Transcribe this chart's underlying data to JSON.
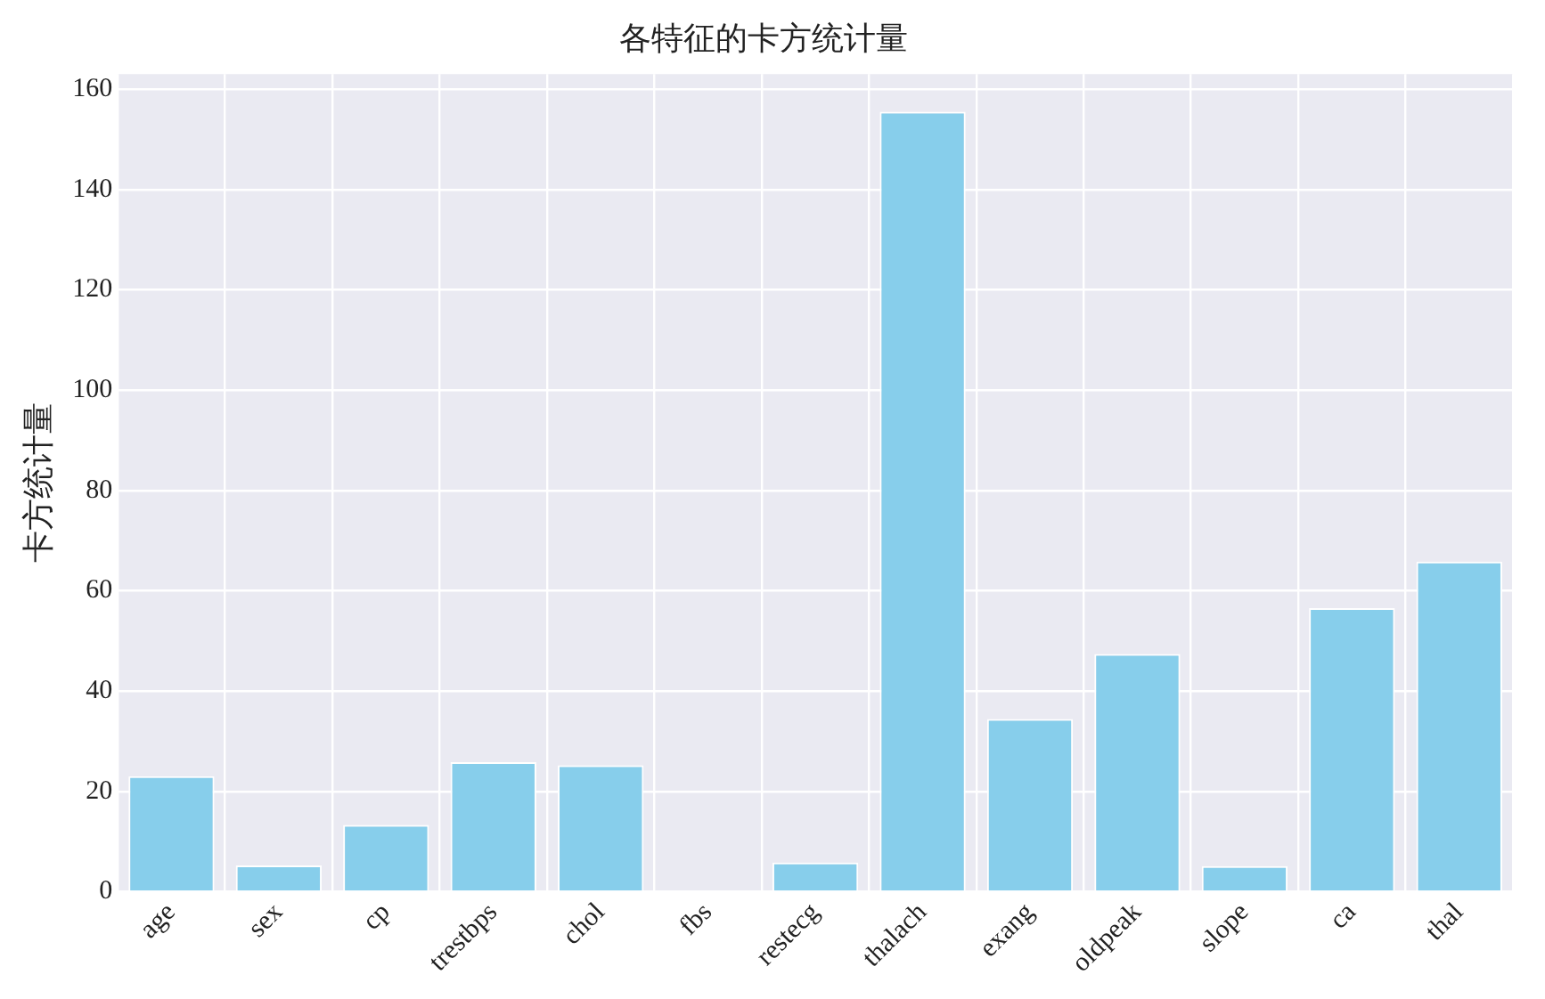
{
  "chart_data": {
    "type": "bar",
    "title": "各特征的卡方统计量",
    "ylabel": "卡方统计量",
    "categories": [
      "age",
      "sex",
      "cp",
      "trestbps",
      "chol",
      "fbs",
      "restecg",
      "thalach",
      "exang",
      "oldpeak",
      "slope",
      "ca",
      "thal"
    ],
    "values": [
      23.0,
      5.2,
      13.3,
      25.8,
      25.2,
      null,
      5.8,
      155.5,
      34.4,
      47.4,
      5.1,
      56.5,
      65.8
    ],
    "color": "#87ceeb",
    "ylim": [
      0,
      163
    ],
    "yticks": [
      0,
      20,
      40,
      60,
      80,
      100,
      120,
      140,
      160
    ],
    "grid": true
  }
}
